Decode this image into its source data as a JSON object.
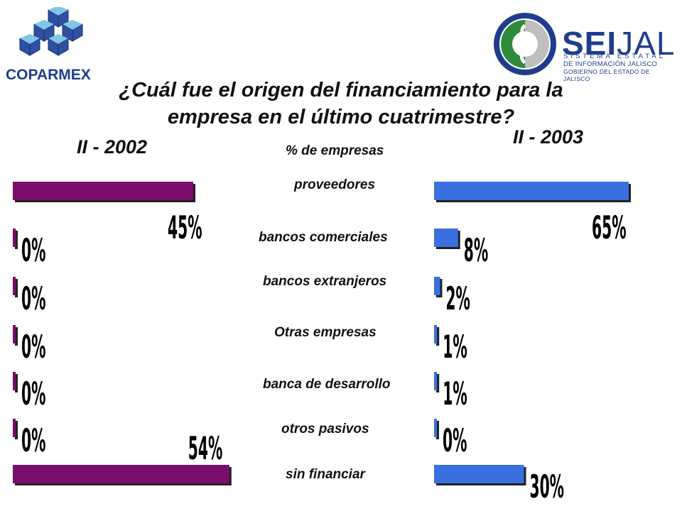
{
  "logos": {
    "left_text": "COPARMEX",
    "right_big_1": "SEI",
    "right_big_2": "JAL",
    "right_line_1": "SISTEMA ESTATAL",
    "right_line_2": "DE INFORMACIÓN JALISCO",
    "right_line_3": "GOBIERNO DEL ESTADO DE JALISCO"
  },
  "colors": {
    "left_bar": "#7a0d6b",
    "right_bar": "#3a6fe0",
    "logo_blue": "#1f3d8c",
    "logo_green": "#2e8b3a"
  },
  "chart_data": {
    "type": "bar",
    "title_line_1": "¿Cuál fue el origen del financiamiento para la",
    "title_line_2": "empresa en el último cuatrimestre?",
    "unit_label": "% de empresas",
    "categories": [
      "proveedores",
      "bancos comerciales",
      "bancos extranjeros",
      "Otras empresas",
      "banca de desarrollo",
      "otros pasivos",
      "sin financiar"
    ],
    "series": [
      {
        "name": "II - 2002",
        "values": [
          45,
          0,
          0,
          0,
          0,
          0,
          54
        ],
        "labels": [
          "45%",
          "0%",
          "0%",
          "0%",
          "0%",
          "0%",
          "54%"
        ]
      },
      {
        "name": "II - 2003",
        "values": [
          65,
          8,
          2,
          1,
          1,
          0,
          30
        ],
        "labels": [
          "65%",
          "8%",
          "2%",
          "1%",
          "1%",
          "0%",
          "30%"
        ]
      }
    ]
  }
}
